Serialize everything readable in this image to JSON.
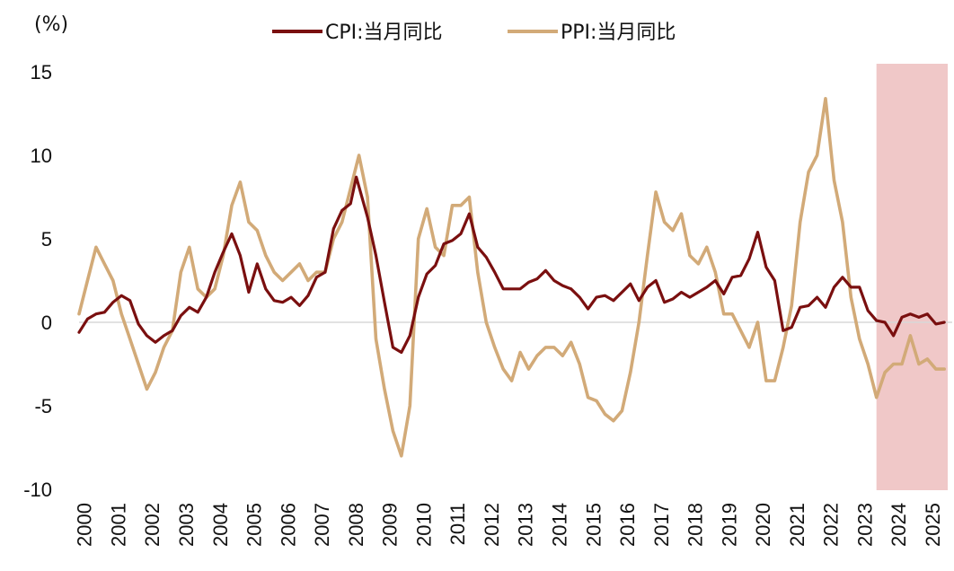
{
  "chart_data": {
    "type": "line",
    "title": "",
    "ylabel": "(%)",
    "xlabel": "",
    "ylim": [
      -10,
      15
    ],
    "xlim": [
      2000,
      2025.6
    ],
    "yticks": [
      -10,
      -5,
      0,
      5,
      10,
      15
    ],
    "ytick_labels": [
      "-10",
      "-5",
      "0",
      "5",
      "10",
      "15"
    ],
    "categories": [
      "2000",
      "2001",
      "2002",
      "2003",
      "2004",
      "2005",
      "2006",
      "2007",
      "2008",
      "2009",
      "2010",
      "2011",
      "2012",
      "2013",
      "2014",
      "2015",
      "2016",
      "2017",
      "2018",
      "2019",
      "2020",
      "2021",
      "2022",
      "2023",
      "2024",
      "2025"
    ],
    "legend_position": "top-center",
    "highlight": {
      "from": 2023.5,
      "to": 2025.6,
      "color": "#f0c8c8"
    },
    "series": [
      {
        "name": "CPI:当月同比",
        "color": "#7a0f0f",
        "x": [
          2000.0,
          2000.25,
          2000.5,
          2000.75,
          2001.0,
          2001.25,
          2001.5,
          2001.75,
          2002.0,
          2002.25,
          2002.5,
          2002.75,
          2003.0,
          2003.25,
          2003.5,
          2003.75,
          2004.0,
          2004.25,
          2004.5,
          2004.75,
          2005.0,
          2005.25,
          2005.5,
          2005.75,
          2006.0,
          2006.25,
          2006.5,
          2006.75,
          2007.0,
          2007.25,
          2007.5,
          2007.75,
          2008.0,
          2008.17,
          2008.5,
          2008.75,
          2009.0,
          2009.25,
          2009.5,
          2009.75,
          2010.0,
          2010.25,
          2010.5,
          2010.75,
          2011.0,
          2011.25,
          2011.5,
          2011.75,
          2012.0,
          2012.25,
          2012.5,
          2012.75,
          2013.0,
          2013.25,
          2013.5,
          2013.75,
          2014.0,
          2014.25,
          2014.5,
          2014.75,
          2015.0,
          2015.25,
          2015.5,
          2015.75,
          2016.0,
          2016.25,
          2016.5,
          2016.75,
          2017.0,
          2017.25,
          2017.5,
          2017.75,
          2018.0,
          2018.25,
          2018.5,
          2018.75,
          2019.0,
          2019.25,
          2019.5,
          2019.75,
          2020.0,
          2020.25,
          2020.5,
          2020.75,
          2021.0,
          2021.25,
          2021.5,
          2021.75,
          2022.0,
          2022.25,
          2022.5,
          2022.75,
          2023.0,
          2023.25,
          2023.5,
          2023.75,
          2024.0,
          2024.25,
          2024.5,
          2024.75,
          2025.0,
          2025.25,
          2025.5
        ],
        "values": [
          -0.6,
          0.2,
          0.5,
          0.6,
          1.2,
          1.6,
          1.3,
          -0.1,
          -0.8,
          -1.2,
          -0.8,
          -0.5,
          0.4,
          0.9,
          0.6,
          1.5,
          3.0,
          4.2,
          5.3,
          4.0,
          1.8,
          3.5,
          2.0,
          1.3,
          1.2,
          1.5,
          1.0,
          1.6,
          2.7,
          3.0,
          5.6,
          6.7,
          7.1,
          8.7,
          6.3,
          4.0,
          1.2,
          -1.5,
          -1.8,
          -0.8,
          1.5,
          2.9,
          3.4,
          4.7,
          4.9,
          5.3,
          6.5,
          4.5,
          3.9,
          3.0,
          2.0,
          2.0,
          2.0,
          2.4,
          2.6,
          3.1,
          2.5,
          2.2,
          2.0,
          1.5,
          0.8,
          1.5,
          1.6,
          1.3,
          1.8,
          2.3,
          1.3,
          2.1,
          2.5,
          1.2,
          1.4,
          1.8,
          1.5,
          1.8,
          2.1,
          2.5,
          1.7,
          2.7,
          2.8,
          3.8,
          5.4,
          3.3,
          2.5,
          -0.5,
          -0.3,
          0.9,
          1.0,
          1.5,
          0.9,
          2.1,
          2.7,
          2.1,
          2.1,
          0.7,
          0.1,
          0.0,
          -0.8,
          0.3,
          0.5,
          0.3,
          0.5,
          -0.1,
          0.0
        ]
      },
      {
        "name": "PPI:当月同比",
        "color": "#d2aa78",
        "x": [
          2000.0,
          2000.25,
          2000.5,
          2000.75,
          2001.0,
          2001.25,
          2001.5,
          2001.75,
          2002.0,
          2002.25,
          2002.5,
          2002.75,
          2003.0,
          2003.25,
          2003.5,
          2003.75,
          2004.0,
          2004.25,
          2004.5,
          2004.75,
          2005.0,
          2005.25,
          2005.5,
          2005.75,
          2006.0,
          2006.25,
          2006.5,
          2006.75,
          2007.0,
          2007.25,
          2007.5,
          2007.75,
          2008.0,
          2008.25,
          2008.5,
          2008.75,
          2009.0,
          2009.25,
          2009.5,
          2009.75,
          2010.0,
          2010.25,
          2010.5,
          2010.75,
          2011.0,
          2011.25,
          2011.5,
          2011.75,
          2012.0,
          2012.25,
          2012.5,
          2012.75,
          2013.0,
          2013.25,
          2013.5,
          2013.75,
          2014.0,
          2014.25,
          2014.5,
          2014.75,
          2015.0,
          2015.25,
          2015.5,
          2015.75,
          2016.0,
          2016.25,
          2016.5,
          2016.75,
          2017.0,
          2017.25,
          2017.5,
          2017.75,
          2018.0,
          2018.25,
          2018.5,
          2018.75,
          2019.0,
          2019.25,
          2019.5,
          2019.75,
          2020.0,
          2020.25,
          2020.5,
          2020.75,
          2021.0,
          2021.25,
          2021.5,
          2021.75,
          2022.0,
          2022.25,
          2022.5,
          2022.75,
          2023.0,
          2023.25,
          2023.5,
          2023.75,
          2024.0,
          2024.25,
          2024.5,
          2024.75,
          2025.0,
          2025.25,
          2025.5
        ],
        "values": [
          0.5,
          2.5,
          4.5,
          3.5,
          2.5,
          0.5,
          -1.0,
          -2.5,
          -4.0,
          -3.0,
          -1.5,
          -0.5,
          3.0,
          4.5,
          2.0,
          1.5,
          2.0,
          4.0,
          7.0,
          8.4,
          6.0,
          5.5,
          4.0,
          3.0,
          2.5,
          3.0,
          3.5,
          2.5,
          3.0,
          3.0,
          5.0,
          6.0,
          8.0,
          10.0,
          7.5,
          -1.0,
          -4.0,
          -6.5,
          -8.0,
          -5.0,
          5.0,
          6.8,
          4.5,
          4.0,
          7.0,
          7.0,
          7.5,
          3.0,
          0.0,
          -1.5,
          -2.8,
          -3.5,
          -1.8,
          -2.8,
          -2.0,
          -1.5,
          -1.5,
          -2.0,
          -1.2,
          -2.5,
          -4.5,
          -4.7,
          -5.5,
          -5.9,
          -5.3,
          -3.0,
          0.0,
          4.0,
          7.8,
          6.0,
          5.5,
          6.5,
          4.0,
          3.5,
          4.5,
          3.0,
          0.5,
          0.5,
          -0.5,
          -1.5,
          0.0,
          -3.5,
          -3.5,
          -1.5,
          1.0,
          6.0,
          9.0,
          10.0,
          13.4,
          8.5,
          6.0,
          1.5,
          -1.0,
          -2.5,
          -4.5,
          -3.0,
          -2.5,
          -2.5,
          -0.8,
          -2.5,
          -2.2,
          -2.8,
          -2.8
        ]
      }
    ]
  }
}
